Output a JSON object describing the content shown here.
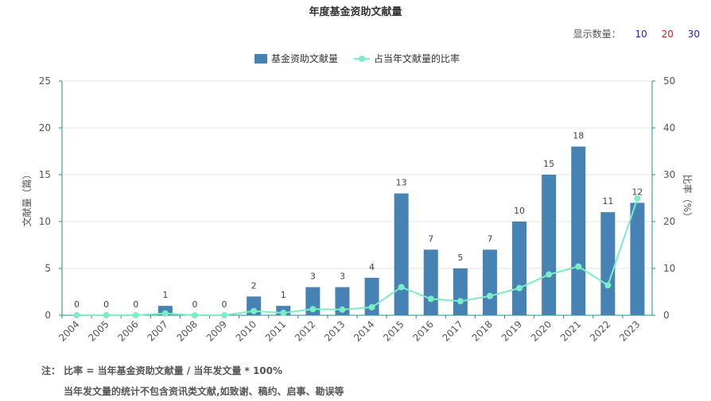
{
  "title": "年度基金资助文献量",
  "display_control": {
    "label": "显示数量：",
    "options": [
      {
        "label": "10",
        "color": "#1f1fcc"
      },
      {
        "label": "20",
        "color": "#d42020"
      },
      {
        "label": "30",
        "color": "#1f1fcc"
      }
    ]
  },
  "legend": {
    "bar": "基金资助文献量",
    "line": "占当年文献量的比率"
  },
  "notes": {
    "line1": "注： 比率 = 当年基金资助文献量 / 当年发文量 * 100%",
    "line2": "当年发文量的统计不包含资讯类文献,如致谢、稿约、启事、勘误等"
  },
  "chart_data": {
    "type": "bar",
    "title": "年度基金资助文献量",
    "categories": [
      "2004",
      "2005",
      "2006",
      "2007",
      "2008",
      "2009",
      "2010",
      "2011",
      "2012",
      "2013",
      "2014",
      "2015",
      "2016",
      "2017",
      "2018",
      "2019",
      "2020",
      "2021",
      "2022",
      "2023"
    ],
    "series": [
      {
        "name": "基金资助文献量",
        "type": "bar",
        "axis": "left",
        "color": "#4682b4",
        "values": [
          0,
          0,
          0,
          1,
          0,
          0,
          2,
          1,
          3,
          3,
          4,
          13,
          7,
          5,
          7,
          10,
          15,
          18,
          11,
          12
        ]
      },
      {
        "name": "占当年文献量的比率",
        "type": "line",
        "axis": "right",
        "color": "#7aeec4",
        "values": [
          0,
          0,
          0,
          0.4,
          0,
          0,
          0.9,
          0.5,
          1.3,
          1.2,
          1.7,
          6.0,
          3.5,
          3.0,
          4.1,
          5.8,
          8.7,
          10.4,
          6.4,
          24.9
        ]
      }
    ],
    "ylabel": "文献量（篇）",
    "y2label": "比率（%）",
    "ylim": [
      0,
      25
    ],
    "y2lim": [
      0,
      50
    ],
    "yticks": [
      0,
      5,
      10,
      15,
      20,
      25
    ],
    "y2ticks": [
      0,
      10,
      20,
      30,
      40,
      50
    ],
    "grid": true,
    "legend_position": "top-center"
  }
}
